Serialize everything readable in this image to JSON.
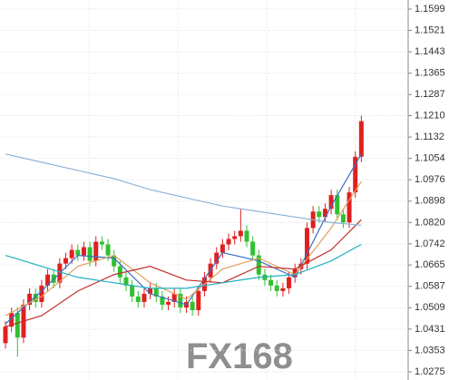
{
  "chart_data": {
    "type": "candlestick",
    "watermark": "FX168",
    "up_color": "#e02020",
    "down_color": "#30c030",
    "ylim": [
      1.0275,
      1.1599
    ],
    "yticks": [
      1.1599,
      1.1521,
      1.1443,
      1.1365,
      1.1287,
      {
        "value": 1.121,
        "label": "1.1210"
      },
      1.1132,
      1.1054,
      1.0976,
      1.0898,
      {
        "value": 1.082,
        "label": "1.0820"
      },
      1.0742,
      1.0665,
      1.0587,
      1.0509,
      1.0431,
      1.0353,
      1.0275
    ],
    "grid": true,
    "open": [
      1.038,
      1.044,
      1.049,
      1.04,
      1.052,
      1.056,
      1.053,
      1.059,
      1.063,
      1.06,
      1.067,
      1.069,
      1.072,
      1.07,
      1.073,
      1.068,
      1.075,
      1.074,
      1.07,
      1.066,
      1.062,
      1.059,
      1.055,
      1.053,
      1.056,
      1.058,
      1.055,
      1.052,
      1.053,
      1.056,
      1.051,
      1.053,
      1.05,
      1.057,
      1.062,
      1.067,
      1.071,
      1.074,
      1.076,
      1.077,
      1.079,
      1.075,
      1.07,
      1.063,
      1.061,
      1.059,
      1.057,
      1.058,
      1.062,
      1.065,
      1.067,
      1.08,
      1.086,
      1.084,
      1.087,
      1.092,
      1.085,
      1.082,
      1.093,
      1.106
    ],
    "high": [
      1.046,
      1.051,
      1.051,
      1.054,
      1.058,
      1.058,
      1.061,
      1.065,
      1.065,
      1.069,
      1.071,
      1.074,
      1.074,
      1.075,
      1.075,
      1.077,
      1.077,
      1.076,
      1.072,
      1.068,
      1.064,
      1.061,
      1.057,
      1.058,
      1.06,
      1.06,
      1.057,
      1.055,
      1.058,
      1.058,
      1.055,
      1.055,
      1.059,
      1.064,
      1.069,
      1.073,
      1.076,
      1.078,
      1.079,
      1.087,
      1.081,
      1.077,
      1.072,
      1.065,
      1.063,
      1.061,
      1.06,
      1.064,
      1.067,
      1.069,
      1.082,
      1.088,
      1.088,
      1.089,
      1.094,
      1.094,
      1.087,
      1.095,
      1.108,
      1.121
    ],
    "low": [
      1.036,
      1.042,
      1.033,
      1.038,
      1.05,
      1.051,
      1.051,
      1.057,
      1.058,
      1.058,
      1.065,
      1.067,
      1.068,
      1.068,
      1.066,
      1.066,
      1.072,
      1.068,
      1.064,
      1.06,
      1.057,
      1.053,
      1.051,
      1.051,
      1.054,
      1.053,
      1.05,
      1.05,
      1.051,
      1.049,
      1.049,
      1.048,
      1.048,
      1.055,
      1.06,
      1.065,
      1.069,
      1.072,
      1.074,
      1.075,
      1.073,
      1.068,
      1.061,
      1.059,
      1.057,
      1.055,
      1.055,
      1.056,
      1.06,
      1.063,
      1.065,
      1.078,
      1.082,
      1.082,
      1.085,
      1.083,
      1.08,
      1.08,
      1.091,
      1.104
    ],
    "close": [
      1.044,
      1.049,
      1.04,
      1.052,
      1.056,
      1.053,
      1.059,
      1.063,
      1.06,
      1.067,
      1.069,
      1.072,
      1.07,
      1.073,
      1.068,
      1.075,
      1.074,
      1.07,
      1.066,
      1.062,
      1.059,
      1.055,
      1.053,
      1.056,
      1.058,
      1.055,
      1.052,
      1.053,
      1.056,
      1.051,
      1.053,
      1.05,
      1.057,
      1.062,
      1.067,
      1.071,
      1.074,
      1.076,
      1.077,
      1.079,
      1.075,
      1.07,
      1.063,
      1.061,
      1.059,
      1.057,
      1.058,
      1.062,
      1.065,
      1.067,
      1.08,
      1.086,
      1.084,
      1.087,
      1.092,
      1.085,
      1.082,
      1.093,
      1.106,
      1.119
    ],
    "lines": [
      {
        "color": "#3a6fc4",
        "x": [
          0,
          6,
          12,
          18,
          24,
          30,
          36,
          42,
          48,
          54,
          59
        ],
        "values": [
          1.045,
          1.057,
          1.07,
          1.069,
          1.056,
          1.052,
          1.071,
          1.068,
          1.062,
          1.088,
          1.107
        ]
      },
      {
        "color": "#e0a060",
        "x": [
          0,
          6,
          12,
          18,
          24,
          30,
          36,
          42,
          48,
          54,
          59
        ],
        "values": [
          1.048,
          1.055,
          1.066,
          1.07,
          1.06,
          1.054,
          1.065,
          1.069,
          1.063,
          1.08,
          1.097
        ]
      },
      {
        "color": "#c0302a",
        "x": [
          0,
          6,
          12,
          18,
          24,
          30,
          36,
          42,
          48,
          54,
          59
        ],
        "values": [
          1.044,
          1.048,
          1.057,
          1.063,
          1.066,
          1.061,
          1.06,
          1.066,
          1.065,
          1.072,
          1.083
        ]
      },
      {
        "color": "#8fb4d8",
        "x": [
          0,
          6,
          12,
          18,
          24,
          30,
          36,
          42,
          48,
          54,
          59
        ],
        "values": [
          1.107,
          1.104,
          1.101,
          1.098,
          1.094,
          1.091,
          1.088,
          1.086,
          1.084,
          1.082,
          1.081
        ]
      },
      {
        "color": "#20b0c0",
        "x": [
          0,
          6,
          12,
          18,
          24,
          30,
          36,
          42,
          48,
          54,
          59
        ],
        "values": [
          1.07,
          1.066,
          1.062,
          1.06,
          1.058,
          1.058,
          1.06,
          1.062,
          1.063,
          1.068,
          1.074
        ]
      }
    ]
  }
}
